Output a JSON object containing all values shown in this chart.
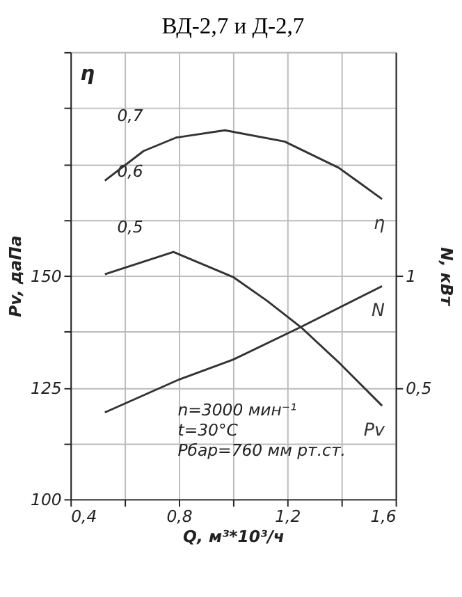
{
  "chart_data": {
    "type": "line",
    "title": "ВД-2,7 и Д-2,7",
    "xlabel": "Q, м³*10³/ч",
    "ylabel": "Pv, даПа",
    "y2label": "N, кВт",
    "y3label": "η",
    "series": [
      {
        "name": "η",
        "color": "#333333",
        "axis": "y3",
        "x": [
          0.527,
          0.67,
          0.79,
          0.97,
          1.19,
          1.39,
          1.55
        ],
        "values": [
          0.57,
          0.623,
          0.647,
          0.66,
          0.64,
          0.593,
          0.537
        ]
      },
      {
        "name": "Pv",
        "color": "#333333",
        "axis": "y",
        "x": [
          0.527,
          0.78,
          1.0,
          1.125,
          1.25,
          1.39,
          1.55
        ],
        "values": [
          150.3,
          155.3,
          149.7,
          144.4,
          138.5,
          130.6,
          120.9
        ]
      },
      {
        "name": "N",
        "color": "#333333",
        "axis": "y2",
        "x": [
          0.527,
          0.8,
          1.0,
          1.25,
          1.55
        ],
        "values": [
          0.388,
          0.535,
          0.624,
          0.77,
          0.953
        ]
      }
    ],
    "xlim": [
      0.4,
      1.6
    ],
    "xticks": [
      {
        "value": 0.4,
        "label": "0,4"
      },
      {
        "value": 0.6,
        "label": null
      },
      {
        "value": 0.8,
        "label": "0,8"
      },
      {
        "value": 1.0,
        "label": null
      },
      {
        "value": 1.2,
        "label": "1,2"
      },
      {
        "value": 1.4,
        "label": null
      },
      {
        "value": 1.6,
        "label": "1,6"
      }
    ],
    "ylim": [
      100,
      200
    ],
    "yticks": [
      100,
      {
        "value": 112.5,
        "label": null
      },
      125,
      {
        "value": 137.5,
        "label": null
      },
      150,
      {
        "value": 162.5,
        "label": null
      },
      {
        "value": 175,
        "label": null
      },
      {
        "value": 187.5,
        "label": null
      },
      {
        "value": 200,
        "label": null
      }
    ],
    "y2lim": [
      0,
      2
    ],
    "y2ticks": [
      {
        "value": 0.5,
        "label": "0,5"
      },
      1
    ],
    "y3lim": [
      0,
      0.8
    ],
    "y3ticks": [
      {
        "value": 0.5,
        "label": "0,5"
      },
      {
        "value": 0.6,
        "label": "0,6"
      },
      {
        "value": 0.7,
        "label": "0,7"
      }
    ],
    "annotations": [
      "n=3000 мин⁻¹",
      "t=30°C",
      "Pбар=760 мм рт.ст."
    ],
    "grid": true,
    "legend": false,
    "marker": "none",
    "line_style": "solid"
  }
}
